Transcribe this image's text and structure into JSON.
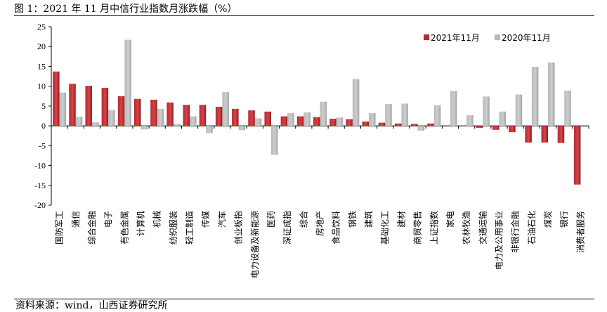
{
  "figure_title": "图 1：2021 年 11 月中信行业指数月涨跌幅（%）",
  "source_note": "资料来源：wind，山西证券研究所",
  "colors": {
    "s2021": "#b22a2e",
    "s2020": "#b9b9b9"
  },
  "chart_data": {
    "type": "bar",
    "title": "",
    "xlabel": "",
    "ylabel": "",
    "ylim": [
      -20,
      25
    ],
    "yticks": [
      -20,
      -15,
      -10,
      -5,
      0,
      5,
      10,
      15,
      20,
      25
    ],
    "grid": false,
    "legend_position": "top-right",
    "categories": [
      "国防军工",
      "通信",
      "综合金融",
      "电子",
      "有色金属",
      "计算机",
      "机械",
      "纺织服装",
      "轻工制造",
      "传媒",
      "汽车",
      "创业板指",
      "电力设备及新能源",
      "医药",
      "深证成指",
      "综合",
      "房地产",
      "食品饮料",
      "钢铁",
      "建筑",
      "基础化工",
      "建材",
      "商贸零售",
      "上证指数",
      "家电",
      "农林牧渔",
      "交通运输",
      "电力及公用事业",
      "非银行金融",
      "石油石化",
      "煤炭",
      "银行",
      "消费者服务"
    ],
    "series": [
      {
        "name": "2021年11月",
        "values": [
          13.7,
          10.6,
          10.1,
          9.6,
          7.5,
          6.8,
          6.6,
          5.9,
          5.3,
          5.3,
          4.8,
          4.3,
          3.9,
          3.6,
          2.4,
          2.4,
          2.2,
          1.8,
          1.7,
          1.1,
          0.8,
          0.6,
          0.5,
          0.6,
          0.0,
          -0.1,
          -0.5,
          -1.0,
          -1.6,
          -4.2,
          -4.2,
          -4.3,
          -14.8
        ]
      },
      {
        "name": "2020年11月",
        "values": [
          8.4,
          2.3,
          0.9,
          4.0,
          21.7,
          -0.9,
          4.3,
          0.5,
          2.4,
          -1.8,
          8.5,
          -1.1,
          1.9,
          -7.3,
          3.2,
          3.4,
          6.1,
          2.1,
          11.8,
          3.2,
          5.5,
          5.6,
          -1.2,
          5.2,
          8.8,
          2.7,
          7.4,
          3.6,
          7.9,
          14.9,
          16.0,
          8.9,
          0.0
        ]
      }
    ]
  }
}
